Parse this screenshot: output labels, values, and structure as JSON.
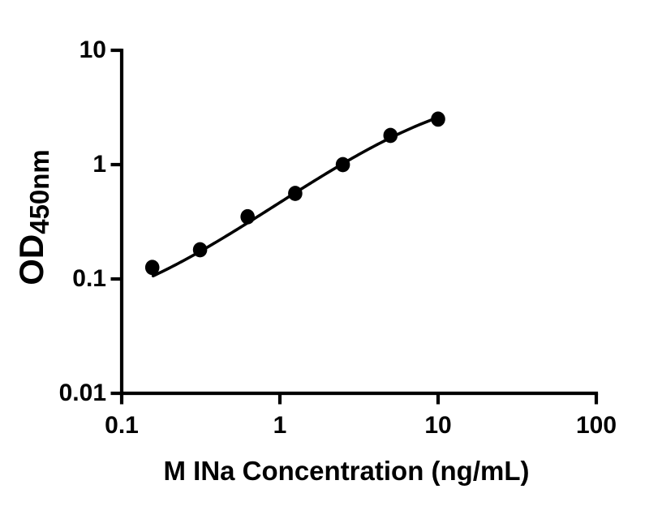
{
  "figure": {
    "background": "#ffffff",
    "xlabel": "M INa Concentration (ng/mL)",
    "ylabel_main": "OD",
    "ylabel_sub": "450nm"
  },
  "chart_data": {
    "type": "scatter",
    "title": "",
    "xlabel": "M INa Concentration (ng/mL)",
    "ylabel": "OD450nm",
    "x_scale": "log",
    "y_scale": "log",
    "xlim": [
      0.1,
      100
    ],
    "ylim": [
      0.01,
      10
    ],
    "x_ticks": [
      0.1,
      1,
      10,
      100
    ],
    "x_tick_labels": [
      "0.1",
      "1",
      "10",
      "100"
    ],
    "y_ticks": [
      10,
      1,
      0.1,
      0.01
    ],
    "y_tick_labels": [
      "10",
      "1",
      "0.1",
      "0.01"
    ],
    "grid": false,
    "legend": false,
    "series": [
      {
        "name": "standard-curve-points",
        "marker": "filled-circle",
        "color": "#000000",
        "x": [
          0.156,
          0.313,
          0.625,
          1.25,
          2.5,
          5,
          10
        ],
        "y": [
          0.126,
          0.18,
          0.35,
          0.56,
          1.0,
          1.8,
          2.5
        ]
      }
    ],
    "fit_curve": {
      "model": "4PL",
      "bottom": 0.04,
      "top": 5.0,
      "ec50": 9.5,
      "hill": 1.05,
      "x_range": [
        0.158,
        10
      ],
      "color": "#000000"
    }
  }
}
